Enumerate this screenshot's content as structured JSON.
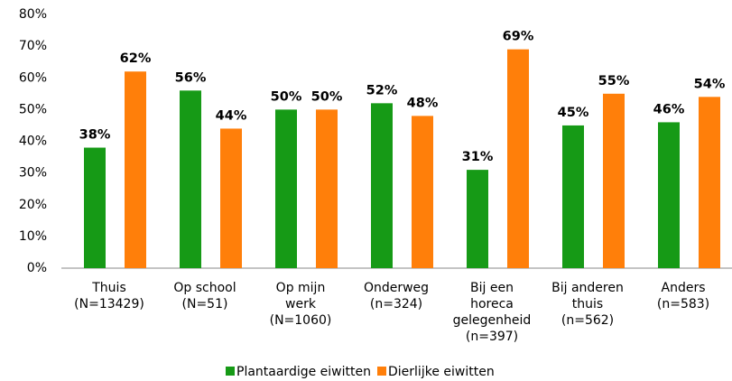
{
  "chart_data": {
    "type": "bar",
    "categories": [
      "Thuis\n(N=13429)",
      "Op school\n(N=51)",
      "Op mijn\nwerk\n(N=1060)",
      "Onderweg\n(n=324)",
      "Bij een\nhoreca\ngelegenheid\n(n=397)",
      "Bij anderen\nthuis\n(n=562)",
      "Anders\n(n=583)"
    ],
    "series": [
      {
        "name": "Plantaardige eiwitten",
        "color": "#169a16",
        "values": [
          38,
          56,
          50,
          52,
          31,
          45,
          46
        ],
        "value_labels": [
          "38%",
          "56%",
          "50%",
          "52%",
          "31%",
          "45%",
          "46%"
        ]
      },
      {
        "name": "Dierlijke eiwitten",
        "color": "#ff7f0a",
        "values": [
          62,
          44,
          50,
          48,
          69,
          55,
          54
        ],
        "value_labels": [
          "62%",
          "44%",
          "50%",
          "48%",
          "69%",
          "55%",
          "54%"
        ]
      }
    ],
    "ylim": [
      0,
      80
    ],
    "yticks": [
      {
        "value": 0,
        "label": "0%"
      },
      {
        "value": 10,
        "label": "10%"
      },
      {
        "value": 20,
        "label": "20%"
      },
      {
        "value": 30,
        "label": "30%"
      },
      {
        "value": 40,
        "label": "40%"
      },
      {
        "value": 50,
        "label": "50%"
      },
      {
        "value": 60,
        "label": "60%"
      },
      {
        "value": 70,
        "label": "70%"
      },
      {
        "value": 80,
        "label": "80%"
      }
    ],
    "grid": false,
    "legend": "bottom"
  }
}
